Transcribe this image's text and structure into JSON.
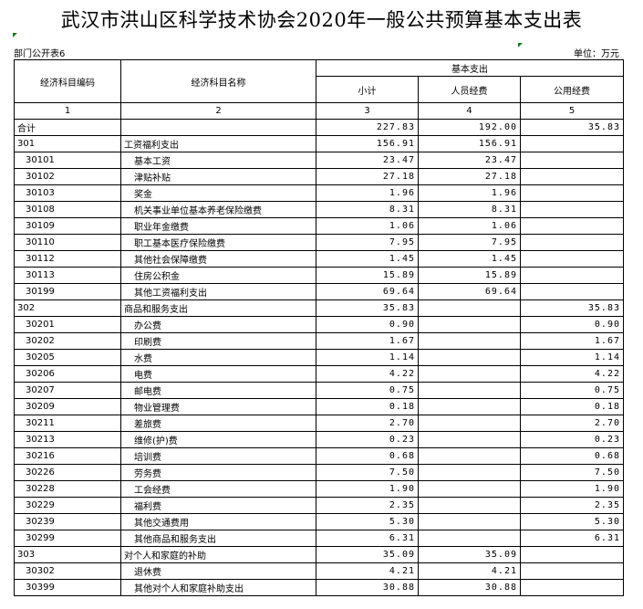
{
  "title": "武汉市洪山区科学技术协会2020年一般公共预算基本支出表",
  "subtitle": "部门公开表6",
  "unit": "单位：万元",
  "headers": {
    "code": "经济科目编码",
    "name": "经济科目名称",
    "basic": "基本支出",
    "subtotal": "小计",
    "personnel": "人员经费",
    "public": "公用经费",
    "n1": "1",
    "n2": "2",
    "n3": "3",
    "n4": "4",
    "n5": "5"
  },
  "rows": [
    {
      "code": "合计",
      "name": "",
      "subtotal": "227.83",
      "personnel": "192.00",
      "public": "35.83",
      "level": 0
    },
    {
      "code": "301",
      "name": "工资福利支出",
      "subtotal": "156.91",
      "personnel": "156.91",
      "public": "",
      "level": 0
    },
    {
      "code": "30101",
      "name": "基本工资",
      "subtotal": "23.47",
      "personnel": "23.47",
      "public": "",
      "level": 1
    },
    {
      "code": "30102",
      "name": "津贴补贴",
      "subtotal": "27.18",
      "personnel": "27.18",
      "public": "",
      "level": 1
    },
    {
      "code": "30103",
      "name": "奖金",
      "subtotal": "1.96",
      "personnel": "1.96",
      "public": "",
      "level": 1
    },
    {
      "code": "30108",
      "name": "机关事业单位基本养老保险缴费",
      "subtotal": "8.31",
      "personnel": "8.31",
      "public": "",
      "level": 1
    },
    {
      "code": "30109",
      "name": "职业年金缴费",
      "subtotal": "1.06",
      "personnel": "1.06",
      "public": "",
      "level": 1
    },
    {
      "code": "30110",
      "name": "职工基本医疗保险缴费",
      "subtotal": "7.95",
      "personnel": "7.95",
      "public": "",
      "level": 1
    },
    {
      "code": "30112",
      "name": "其他社会保障缴费",
      "subtotal": "1.45",
      "personnel": "1.45",
      "public": "",
      "level": 1
    },
    {
      "code": "30113",
      "name": "住房公积金",
      "subtotal": "15.89",
      "personnel": "15.89",
      "public": "",
      "level": 1
    },
    {
      "code": "30199",
      "name": "其他工资福利支出",
      "subtotal": "69.64",
      "personnel": "69.64",
      "public": "",
      "level": 1
    },
    {
      "code": "302",
      "name": "商品和服务支出",
      "subtotal": "35.83",
      "personnel": "",
      "public": "35.83",
      "level": 0
    },
    {
      "code": "30201",
      "name": "办公费",
      "subtotal": "0.90",
      "personnel": "",
      "public": "0.90",
      "level": 1
    },
    {
      "code": "30202",
      "name": "印刷费",
      "subtotal": "1.67",
      "personnel": "",
      "public": "1.67",
      "level": 1
    },
    {
      "code": "30205",
      "name": "水费",
      "subtotal": "1.14",
      "personnel": "",
      "public": "1.14",
      "level": 1
    },
    {
      "code": "30206",
      "name": "电费",
      "subtotal": "4.22",
      "personnel": "",
      "public": "4.22",
      "level": 1
    },
    {
      "code": "30207",
      "name": "邮电费",
      "subtotal": "0.75",
      "personnel": "",
      "public": "0.75",
      "level": 1
    },
    {
      "code": "30209",
      "name": "物业管理费",
      "subtotal": "0.18",
      "personnel": "",
      "public": "0.18",
      "level": 1
    },
    {
      "code": "30211",
      "name": "差旅费",
      "subtotal": "2.70",
      "personnel": "",
      "public": "2.70",
      "level": 1
    },
    {
      "code": "30213",
      "name": "维修(护)费",
      "subtotal": "0.23",
      "personnel": "",
      "public": "0.23",
      "level": 1
    },
    {
      "code": "30216",
      "name": "培训费",
      "subtotal": "0.68",
      "personnel": "",
      "public": "0.68",
      "level": 1
    },
    {
      "code": "30226",
      "name": "劳务费",
      "subtotal": "7.50",
      "personnel": "",
      "public": "7.50",
      "level": 1
    },
    {
      "code": "30228",
      "name": "工会经费",
      "subtotal": "1.90",
      "personnel": "",
      "public": "1.90",
      "level": 1
    },
    {
      "code": "30229",
      "name": "福利费",
      "subtotal": "2.35",
      "personnel": "",
      "public": "2.35",
      "level": 1
    },
    {
      "code": "30239",
      "name": "其他交通费用",
      "subtotal": "5.30",
      "personnel": "",
      "public": "5.30",
      "level": 1
    },
    {
      "code": "30299",
      "name": "其他商品和服务支出",
      "subtotal": "6.31",
      "personnel": "",
      "public": "6.31",
      "level": 1
    },
    {
      "code": "303",
      "name": "对个人和家庭的补助",
      "subtotal": "35.09",
      "personnel": "35.09",
      "public": "",
      "level": 0
    },
    {
      "code": "30302",
      "name": "退休费",
      "subtotal": "4.21",
      "personnel": "4.21",
      "public": "",
      "level": 1
    },
    {
      "code": "30399",
      "name": "其他对个人和家庭补助支出",
      "subtotal": "30.88",
      "personnel": "30.88",
      "public": "",
      "level": 1
    }
  ]
}
